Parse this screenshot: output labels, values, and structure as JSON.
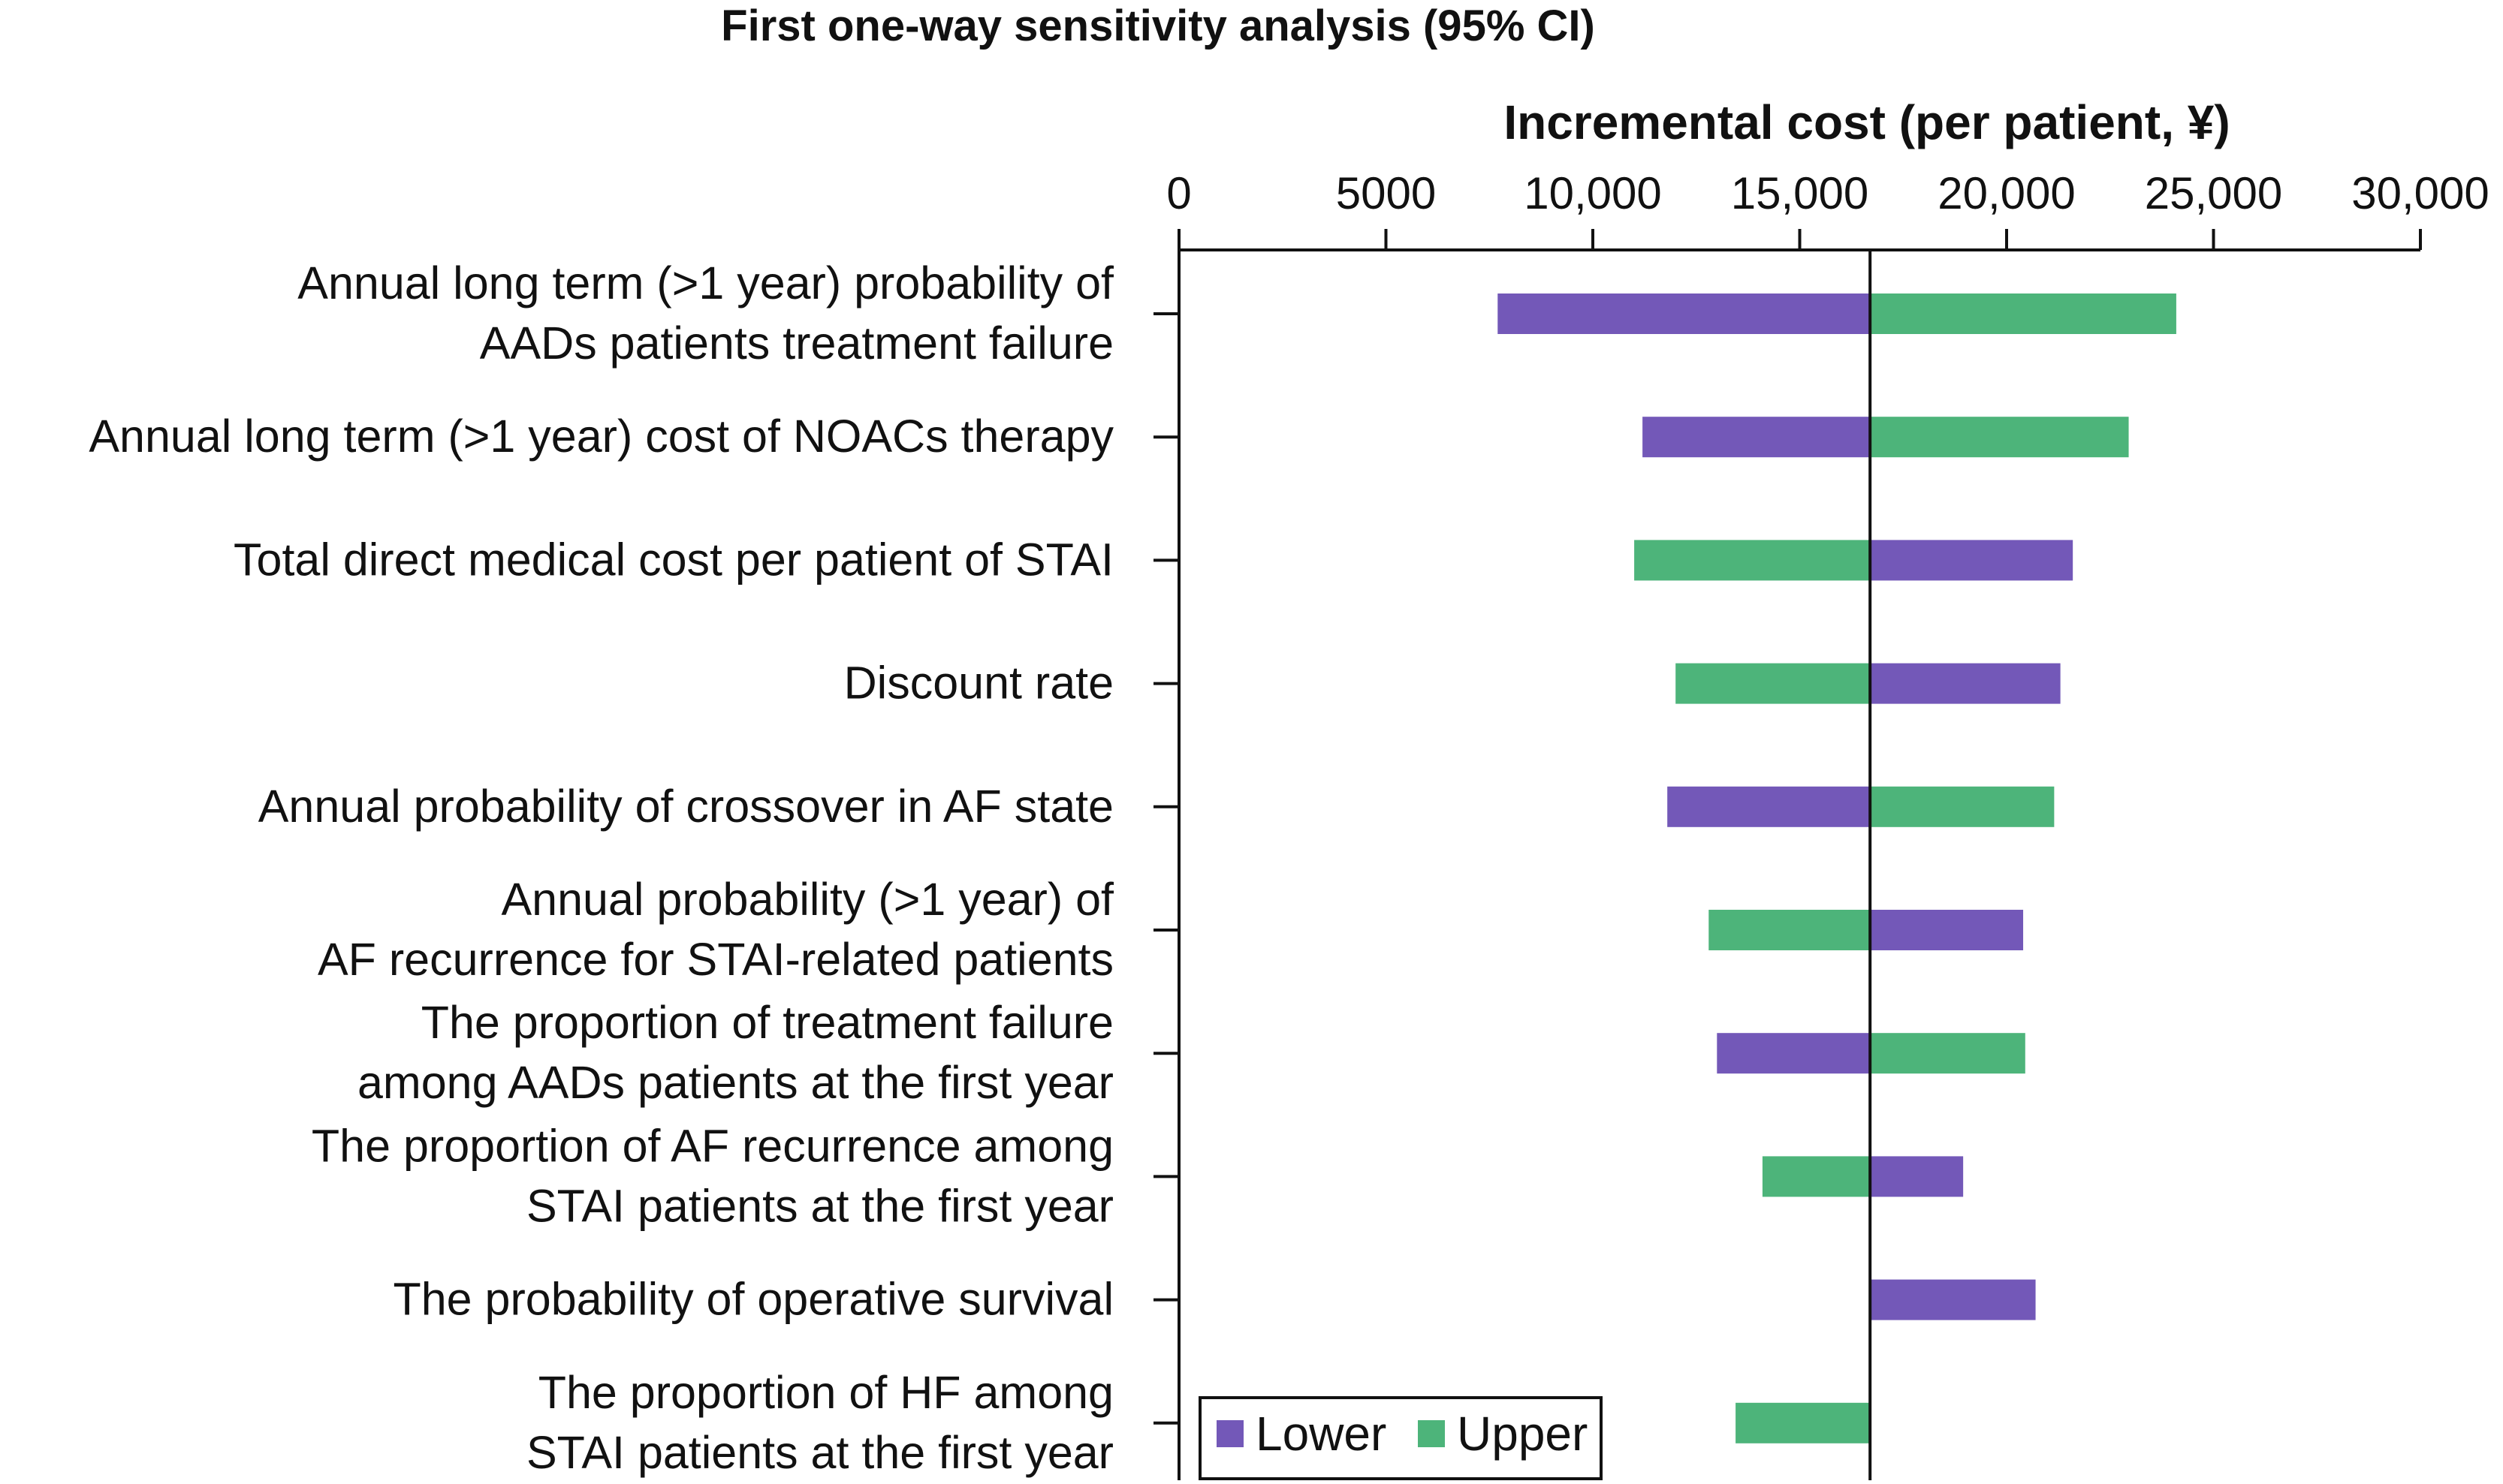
{
  "chart_data": {
    "type": "bar",
    "orientation": "horizontal",
    "subtype": "tornado",
    "title": "First one-way sensitivity analysis (95% CI)",
    "xlabel": "Incremental cost (per patient, ¥)",
    "ylabel": "",
    "xlim": [
      0,
      30000
    ],
    "xticks": [
      0,
      5000,
      10000,
      15000,
      20000,
      25000,
      30000
    ],
    "xtick_labels": [
      "0",
      "5000",
      "10,000",
      "15,000",
      "20,000",
      "25,000",
      "30,000"
    ],
    "axis_position": "top",
    "base_value": 16700,
    "categories": [
      [
        "Annual long term (>1 year) probability of",
        "AADs patients treatment failure"
      ],
      [
        "Annual long term (>1 year) cost of NOACs therapy"
      ],
      [
        "Total direct medical cost per patient of STAI"
      ],
      [
        "Discount rate"
      ],
      [
        "Annual probability of crossover in AF state"
      ],
      [
        "Annual probability (>1 year) of",
        "AF recurrence for STAI-related patients"
      ],
      [
        "The proportion of treatment failure",
        "among AADs patients at the first year"
      ],
      [
        "The proportion of AF recurrence among",
        "STAI patients at the first year"
      ],
      [
        "The probability of operative survival"
      ],
      [
        "The proportion of HF among",
        "STAI patients at the first year"
      ]
    ],
    "series": [
      {
        "name": "Lower",
        "color": "#7358b8",
        "values": [
          7700,
          11200,
          21600,
          21300,
          11800,
          20400,
          13000,
          18950,
          20700,
          null
        ]
      },
      {
        "name": "Upper",
        "color": "#4db47a",
        "values": [
          24100,
          22950,
          11000,
          12000,
          21150,
          12800,
          20450,
          14100,
          null,
          13450
        ]
      }
    ],
    "legend": {
      "position": "bottom-left",
      "entries": [
        "Lower",
        "Upper"
      ]
    }
  }
}
